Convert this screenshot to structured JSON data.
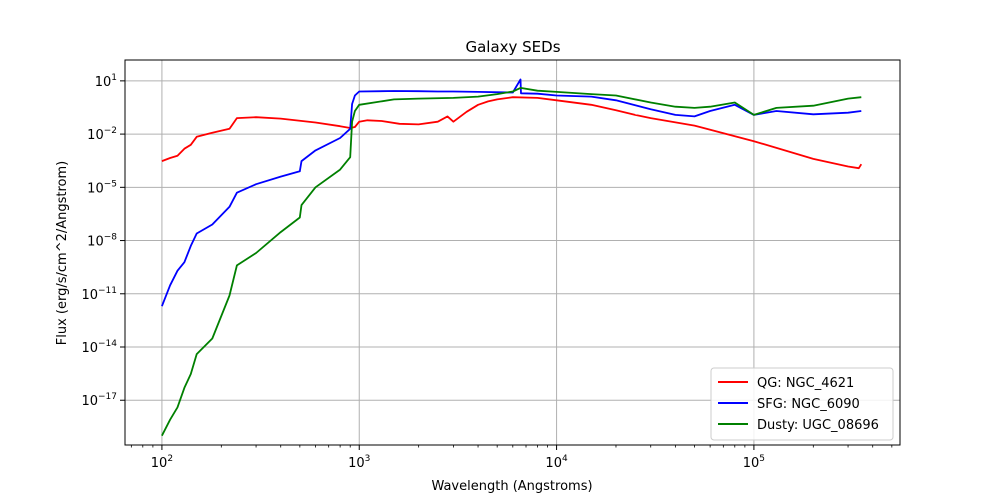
{
  "chart_data": {
    "type": "line",
    "title": "Galaxy SEDs",
    "xlabel": "Wavelength (Angstroms)",
    "ylabel": "Flux (erg/s/cm^2/Angstrom)",
    "x_scale": "log",
    "y_scale": "log",
    "xlim": [
      65,
      550000
    ],
    "ylim": [
      3e-20,
      150
    ],
    "grid": true,
    "legend_position": "lower-right",
    "x_ticks": [
      {
        "value": 100,
        "base": "10",
        "exp": "2"
      },
      {
        "value": 1000,
        "base": "10",
        "exp": "3"
      },
      {
        "value": 10000,
        "base": "10",
        "exp": "4"
      },
      {
        "value": 100000,
        "base": "10",
        "exp": "5"
      }
    ],
    "y_ticks": [
      {
        "value": 1e-17,
        "base": "10",
        "exp": "−17"
      },
      {
        "value": 1e-14,
        "base": "10",
        "exp": "−14"
      },
      {
        "value": 1e-11,
        "base": "10",
        "exp": "−11"
      },
      {
        "value": 1e-08,
        "base": "10",
        "exp": "−8"
      },
      {
        "value": 1e-05,
        "base": "10",
        "exp": "−5"
      },
      {
        "value": 0.01,
        "base": "10",
        "exp": "−2"
      },
      {
        "value": 10,
        "base": "10",
        "exp": "1"
      }
    ],
    "series": [
      {
        "name": "QG: NGC_4621",
        "color": "#ff0000",
        "points": [
          [
            100,
            0.0003
          ],
          [
            110,
            0.00045
          ],
          [
            120,
            0.0006
          ],
          [
            130,
            0.0015
          ],
          [
            140,
            0.0025
          ],
          [
            150,
            0.007
          ],
          [
            180,
            0.012
          ],
          [
            220,
            0.02
          ],
          [
            240,
            0.08
          ],
          [
            300,
            0.09
          ],
          [
            400,
            0.075
          ],
          [
            600,
            0.045
          ],
          [
            800,
            0.028
          ],
          [
            900,
            0.022
          ],
          [
            950,
            0.025
          ],
          [
            1000,
            0.05
          ],
          [
            1100,
            0.06
          ],
          [
            1300,
            0.055
          ],
          [
            1600,
            0.038
          ],
          [
            2000,
            0.035
          ],
          [
            2500,
            0.05
          ],
          [
            2800,
            0.1
          ],
          [
            3000,
            0.05
          ],
          [
            3500,
            0.18
          ],
          [
            4000,
            0.45
          ],
          [
            4500,
            0.7
          ],
          [
            5000,
            0.9
          ],
          [
            6000,
            1.2
          ],
          [
            8000,
            1.1
          ],
          [
            10000,
            0.8
          ],
          [
            15000,
            0.45
          ],
          [
            20000,
            0.22
          ],
          [
            25000,
            0.12
          ],
          [
            30000,
            0.08
          ],
          [
            50000,
            0.03
          ],
          [
            100000,
            0.004
          ],
          [
            200000,
            0.0004
          ],
          [
            300000,
            0.00015
          ],
          [
            340000,
            0.00012
          ],
          [
            350000,
            0.0002
          ]
        ]
      },
      {
        "name": "SFG: NGC_6090",
        "color": "#0000ff",
        "points": [
          [
            100,
            2e-12
          ],
          [
            110,
            3e-11
          ],
          [
            120,
            2e-10
          ],
          [
            130,
            6e-10
          ],
          [
            140,
            5e-09
          ],
          [
            150,
            2.5e-08
          ],
          [
            180,
            8e-08
          ],
          [
            220,
            8e-07
          ],
          [
            240,
            5e-06
          ],
          [
            300,
            1.5e-05
          ],
          [
            400,
            4e-05
          ],
          [
            500,
            8e-05
          ],
          [
            510,
            0.0003
          ],
          [
            600,
            0.0012
          ],
          [
            800,
            0.006
          ],
          [
            900,
            0.02
          ],
          [
            920,
            0.5
          ],
          [
            950,
            1.5
          ],
          [
            1000,
            2.5
          ],
          [
            1500,
            2.7
          ],
          [
            2000,
            2.6
          ],
          [
            2500,
            2.5
          ],
          [
            3000,
            2.5
          ],
          [
            4000,
            2.4
          ],
          [
            6000,
            2.2
          ],
          [
            6563,
            12
          ],
          [
            6600,
            2.0
          ],
          [
            8000,
            1.9
          ],
          [
            10000,
            1.5
          ],
          [
            15000,
            1.3
          ],
          [
            20000,
            0.8
          ],
          [
            30000,
            0.25
          ],
          [
            40000,
            0.12
          ],
          [
            50000,
            0.1
          ],
          [
            60000,
            0.2
          ],
          [
            80000,
            0.45
          ],
          [
            100000,
            0.12
          ],
          [
            130000,
            0.2
          ],
          [
            200000,
            0.13
          ],
          [
            300000,
            0.16
          ],
          [
            350000,
            0.2
          ]
        ]
      },
      {
        "name": "Dusty: UGC_08696",
        "color": "#008000",
        "points": [
          [
            100,
            1e-19
          ],
          [
            110,
            8e-19
          ],
          [
            120,
            4e-18
          ],
          [
            130,
            5e-17
          ],
          [
            140,
            3e-16
          ],
          [
            150,
            4e-15
          ],
          [
            180,
            3e-14
          ],
          [
            220,
            8e-12
          ],
          [
            240,
            4e-10
          ],
          [
            300,
            2e-09
          ],
          [
            400,
            3e-08
          ],
          [
            500,
            2e-07
          ],
          [
            510,
            1e-06
          ],
          [
            600,
            1e-05
          ],
          [
            800,
            0.0001
          ],
          [
            900,
            0.0005
          ],
          [
            920,
            0.05
          ],
          [
            950,
            0.2
          ],
          [
            1000,
            0.45
          ],
          [
            1500,
            0.9
          ],
          [
            2000,
            1.0
          ],
          [
            3000,
            1.1
          ],
          [
            4000,
            1.3
          ],
          [
            5000,
            1.8
          ],
          [
            6000,
            2.5
          ],
          [
            6563,
            4
          ],
          [
            8000,
            2.8
          ],
          [
            10000,
            2.4
          ],
          [
            15000,
            1.8
          ],
          [
            20000,
            1.5
          ],
          [
            30000,
            0.6
          ],
          [
            40000,
            0.35
          ],
          [
            50000,
            0.3
          ],
          [
            60000,
            0.35
          ],
          [
            80000,
            0.6
          ],
          [
            100000,
            0.12
          ],
          [
            130000,
            0.3
          ],
          [
            200000,
            0.4
          ],
          [
            300000,
            1.0
          ],
          [
            350000,
            1.2
          ]
        ]
      }
    ]
  }
}
